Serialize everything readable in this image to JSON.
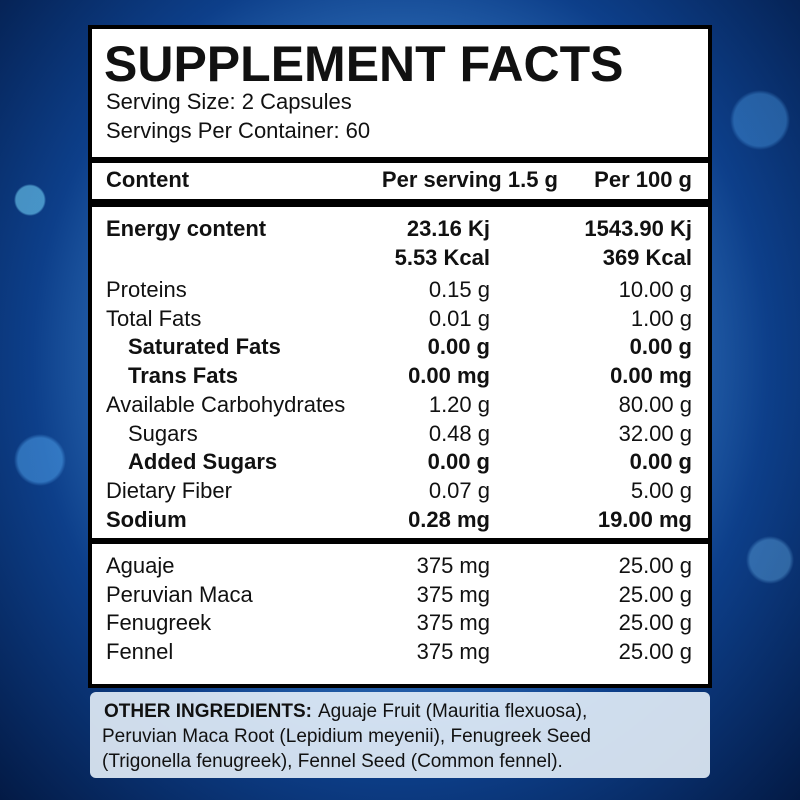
{
  "header": {
    "title": "SUPPLEMENT FACTS",
    "serving_size": "Serving Size: 2 Capsules",
    "servings_per_container": "Servings Per Container: 60"
  },
  "columns": [
    "Content",
    "Per serving 1.5 g",
    "Per 100 g"
  ],
  "energy": {
    "label": "Energy content",
    "per_serving": [
      "23.16 Kj",
      "5.53 Kcal"
    ],
    "per_100g": [
      "1543.90 Kj",
      "369 Kcal"
    ]
  },
  "nutrients": [
    {
      "label": "Proteins",
      "per_serving": "0.15 g",
      "per_100g": "10.00 g",
      "bold": false,
      "indent": false
    },
    {
      "label": "Total Fats",
      "per_serving": "0.01 g",
      "per_100g": "1.00 g",
      "bold": false,
      "indent": false
    },
    {
      "label": "Saturated Fats",
      "per_serving": "0.00 g",
      "per_100g": "0.00 g",
      "bold": true,
      "indent": true
    },
    {
      "label": "Trans Fats",
      "per_serving": "0.00 mg",
      "per_100g": "0.00 mg",
      "bold": true,
      "indent": true
    },
    {
      "label": "Available Carbohydrates",
      "per_serving": "1.20 g",
      "per_100g": "80.00 g",
      "bold": false,
      "indent": false
    },
    {
      "label": "Sugars",
      "per_serving": "0.48 g",
      "per_100g": "32.00 g",
      "bold": false,
      "indent": true
    },
    {
      "label": "Added Sugars",
      "per_serving": "0.00 g",
      "per_100g": "0.00 g",
      "bold": true,
      "indent": true
    },
    {
      "label": "Dietary Fiber",
      "per_serving": "0.07 g",
      "per_100g": "5.00 g",
      "bold": false,
      "indent": false
    },
    {
      "label": "Sodium",
      "per_serving": "0.28 mg",
      "per_100g": "19.00 mg",
      "bold": true,
      "indent": false
    }
  ],
  "ingredients": [
    {
      "label": "Aguaje",
      "per_serving": "375 mg",
      "per_100g": "25.00 g"
    },
    {
      "label": "Peruvian Maca",
      "per_serving": "375 mg",
      "per_100g": "25.00 g"
    },
    {
      "label": "Fenugreek",
      "per_serving": "375 mg",
      "per_100g": "25.00 g"
    },
    {
      "label": "Fennel",
      "per_serving": "375 mg",
      "per_100g": "25.00 g"
    }
  ],
  "other_ingredients": {
    "label": "OTHER INGREDIENTS:",
    "lines": [
      "Aguaje Fruit (Mauritia flexuosa),",
      "Peruvian Maca Root (Lepidium meyenii), Fenugreek Seed",
      "(Trigonella fenugreek), Fennel Seed (Common fennel)."
    ]
  }
}
